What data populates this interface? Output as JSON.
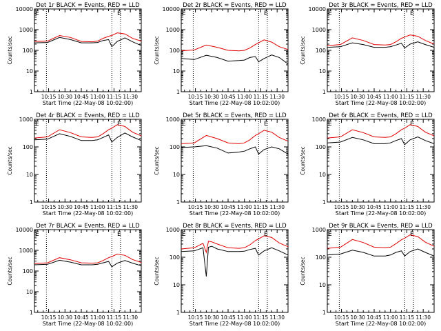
{
  "figure": {
    "panel_title_suffix": " BLACK = Events, RED = LLD",
    "xlabel": "Start Time (22-May-08 10:02:00)",
    "ylabel": "Counts/sec"
  },
  "colors": {
    "events": "#000000",
    "lld": "#e00000",
    "axes": "#000000",
    "background": "#ffffff"
  },
  "chart_data": [
    {
      "type": "line",
      "panel": "Det 1r",
      "title": "Det 1r BLACK = Events, RED = LLD",
      "xlabel": "Start Time (22-May-08 10:02:00)",
      "ylabel": "Counts/sec",
      "y_scale": "log",
      "ylim": [
        1,
        10000
      ],
      "xlim": [
        "10:02",
        "11:40"
      ],
      "x_ticks": [
        "10:15",
        "10:30",
        "10:45",
        "11:00",
        "11:15",
        "11:30"
      ],
      "y_ticks": [
        "1",
        "10",
        "100",
        "1000",
        "10000"
      ],
      "vertical_dotted_lines": [
        "10:13",
        "11:13",
        "11:21"
      ],
      "annotation": "E",
      "x": [
        "10:02",
        "10:14",
        "10:25",
        "10:35",
        "10:45",
        "10:55",
        "11:00",
        "11:05",
        "11:10",
        "11:13",
        "11:18",
        "11:25",
        "11:32",
        "11:40"
      ],
      "series": [
        {
          "name": "Events",
          "color": "#000000",
          "values": [
            230,
            240,
            420,
            330,
            230,
            230,
            240,
            300,
            330,
            150,
            270,
            400,
            260,
            170
          ]
        },
        {
          "name": "LLD",
          "color": "#e00000",
          "values": [
            270,
            280,
            520,
            420,
            270,
            260,
            280,
            380,
            480,
            520,
            700,
            620,
            380,
            280
          ]
        }
      ]
    },
    {
      "type": "line",
      "panel": "Det 2r",
      "title": "Det 2r BLACK = Events, RED = LLD",
      "xlabel": "Start Time (22-May-08 10:02:00)",
      "ylabel": "Counts/sec",
      "y_scale": "log",
      "ylim": [
        1,
        10000
      ],
      "xlim": [
        "10:02",
        "11:40"
      ],
      "x_ticks": [
        "10:15",
        "10:30",
        "10:45",
        "11:00",
        "11:15",
        "11:30"
      ],
      "y_ticks": [
        "1",
        "10",
        "100",
        "1000",
        "10000"
      ],
      "vertical_dotted_lines": [
        "10:13",
        "11:13",
        "11:21"
      ],
      "annotation": "E",
      "x": [
        "10:02",
        "10:14",
        "10:25",
        "10:35",
        "10:45",
        "10:55",
        "11:00",
        "11:05",
        "11:10",
        "11:13",
        "11:18",
        "11:25",
        "11:32",
        "11:40"
      ],
      "series": [
        {
          "name": "Events",
          "color": "#000000",
          "values": [
            40,
            36,
            58,
            45,
            30,
            32,
            34,
            45,
            50,
            28,
            40,
            60,
            45,
            22
          ]
        },
        {
          "name": "LLD",
          "color": "#e00000",
          "values": [
            95,
            105,
            180,
            140,
            100,
            95,
            100,
            130,
            190,
            230,
            320,
            250,
            150,
            110
          ]
        }
      ]
    },
    {
      "type": "line",
      "panel": "Det 3r",
      "title": "Det 3r BLACK = Events, RED = LLD",
      "xlabel": "Start Time (22-May-08 10:02:00)",
      "ylabel": "Counts/sec",
      "y_scale": "log",
      "ylim": [
        1,
        10000
      ],
      "xlim": [
        "10:02",
        "11:40"
      ],
      "x_ticks": [
        "10:15",
        "10:30",
        "10:45",
        "11:00",
        "11:15",
        "11:30"
      ],
      "y_ticks": [
        "1",
        "10",
        "100",
        "1000",
        "10000"
      ],
      "vertical_dotted_lines": [
        "10:13",
        "11:13",
        "11:21"
      ],
      "annotation": "E",
      "x": [
        "10:02",
        "10:14",
        "10:25",
        "10:35",
        "10:45",
        "10:55",
        "11:00",
        "11:05",
        "11:10",
        "11:13",
        "11:18",
        "11:25",
        "11:32",
        "11:40"
      ],
      "series": [
        {
          "name": "Events",
          "color": "#000000",
          "values": [
            140,
            150,
            230,
            190,
            140,
            140,
            150,
            180,
            220,
            130,
            200,
            260,
            190,
            140
          ]
        },
        {
          "name": "LLD",
          "color": "#e00000",
          "values": [
            170,
            190,
            400,
            300,
            190,
            180,
            190,
            260,
            380,
            440,
            560,
            480,
            300,
            200
          ]
        }
      ]
    },
    {
      "type": "line",
      "panel": "Det 4r",
      "title": "Det 4r BLACK = Events, RED = LLD",
      "xlabel": "Start Time (22-May-08 10:02:00)",
      "ylabel": "Counts/sec",
      "y_scale": "log",
      "ylim": [
        1,
        1000
      ],
      "xlim": [
        "10:02",
        "11:40"
      ],
      "x_ticks": [
        "10:15",
        "10:30",
        "10:45",
        "11:00",
        "11:15",
        "11:30"
      ],
      "y_ticks": [
        "1",
        "10",
        "100",
        "1000"
      ],
      "vertical_dotted_lines": [
        "10:13",
        "11:13",
        "11:21"
      ],
      "annotation": "E",
      "x": [
        "10:02",
        "10:14",
        "10:25",
        "10:35",
        "10:45",
        "10:55",
        "11:00",
        "11:05",
        "11:10",
        "11:13",
        "11:18",
        "11:25",
        "11:32",
        "11:40"
      ],
      "series": [
        {
          "name": "Events",
          "color": "#000000",
          "values": [
            180,
            190,
            300,
            240,
            170,
            170,
            180,
            220,
            270,
            150,
            220,
            320,
            230,
            170
          ]
        },
        {
          "name": "LLD",
          "color": "#e00000",
          "values": [
            210,
            230,
            420,
            330,
            230,
            220,
            230,
            300,
            420,
            480,
            640,
            550,
            340,
            250
          ]
        }
      ]
    },
    {
      "type": "line",
      "panel": "Det 5r",
      "title": "Det 5r BLACK = Events, RED = LLD",
      "xlabel": "Start Time (22-May-08 10:02:00)",
      "ylabel": "Counts/sec",
      "y_scale": "log",
      "ylim": [
        1,
        1000
      ],
      "xlim": [
        "10:02",
        "11:40"
      ],
      "x_ticks": [
        "10:15",
        "10:30",
        "10:45",
        "11:00",
        "11:15",
        "11:30"
      ],
      "y_ticks": [
        "1",
        "10",
        "100",
        "1000"
      ],
      "vertical_dotted_lines": [
        "10:13",
        "11:13",
        "11:21"
      ],
      "annotation": "E",
      "x": [
        "10:02",
        "10:14",
        "10:25",
        "10:35",
        "10:45",
        "10:55",
        "11:00",
        "11:05",
        "11:10",
        "11:13",
        "11:18",
        "11:25",
        "11:32",
        "11:40"
      ],
      "series": [
        {
          "name": "Events",
          "color": "#000000",
          "values": [
            95,
            100,
            110,
            90,
            60,
            65,
            70,
            85,
            100,
            55,
            80,
            100,
            85,
            55
          ]
        },
        {
          "name": "LLD",
          "color": "#e00000",
          "values": [
            130,
            140,
            260,
            200,
            140,
            130,
            140,
            180,
            260,
            300,
            400,
            340,
            220,
            160
          ]
        }
      ]
    },
    {
      "type": "line",
      "panel": "Det 6r",
      "title": "Det 6r BLACK = Events, RED = LLD",
      "xlabel": "Start Time (22-May-08 10:02:00)",
      "ylabel": "Counts/sec",
      "y_scale": "log",
      "ylim": [
        1,
        1000
      ],
      "xlim": [
        "10:02",
        "11:40"
      ],
      "x_ticks": [
        "10:15",
        "10:30",
        "10:45",
        "11:00",
        "11:15",
        "11:30"
      ],
      "y_ticks": [
        "1",
        "10",
        "100",
        "1000"
      ],
      "vertical_dotted_lines": [
        "10:13",
        "11:13",
        "11:21"
      ],
      "annotation": "E",
      "x": [
        "10:02",
        "10:14",
        "10:25",
        "10:35",
        "10:45",
        "10:55",
        "11:00",
        "11:05",
        "11:10",
        "11:13",
        "11:18",
        "11:25",
        "11:32",
        "11:40"
      ],
      "series": [
        {
          "name": "Events",
          "color": "#000000",
          "values": [
            140,
            150,
            220,
            180,
            130,
            130,
            140,
            170,
            200,
            120,
            180,
            230,
            170,
            130
          ]
        },
        {
          "name": "LLD",
          "color": "#e00000",
          "values": [
            210,
            230,
            420,
            330,
            230,
            220,
            230,
            300,
            420,
            480,
            640,
            550,
            340,
            250
          ]
        }
      ]
    },
    {
      "type": "line",
      "panel": "Det 7r",
      "title": "Det 7r BLACK = Events, RED = LLD",
      "xlabel": "Start Time (22-May-08 10:02:00)",
      "ylabel": "Counts/sec",
      "y_scale": "log",
      "ylim": [
        1,
        10000
      ],
      "xlim": [
        "10:02",
        "11:40"
      ],
      "x_ticks": [
        "10:15",
        "10:30",
        "10:45",
        "11:00",
        "11:15",
        "11:30"
      ],
      "y_ticks": [
        "1",
        "10",
        "100",
        "1000",
        "10000"
      ],
      "vertical_dotted_lines": [
        "10:13",
        "11:13",
        "11:21"
      ],
      "annotation": "E",
      "x": [
        "10:02",
        "10:14",
        "10:25",
        "10:35",
        "10:45",
        "10:55",
        "11:00",
        "11:05",
        "11:10",
        "11:13",
        "11:18",
        "11:25",
        "11:32",
        "11:40"
      ],
      "series": [
        {
          "name": "Events",
          "color": "#000000",
          "values": [
            200,
            210,
            330,
            270,
            200,
            200,
            210,
            250,
            290,
            160,
            240,
            320,
            240,
            180
          ]
        },
        {
          "name": "LLD",
          "color": "#e00000",
          "values": [
            230,
            250,
            440,
            350,
            250,
            240,
            250,
            320,
            440,
            500,
            660,
            570,
            360,
            260
          ]
        }
      ]
    },
    {
      "type": "line",
      "panel": "Det 8r",
      "title": "Det 8r BLACK = Events, RED = LLD",
      "xlabel": "Start Time (22-May-08 10:02:00)",
      "ylabel": "Counts/sec",
      "y_scale": "log",
      "ylim": [
        1,
        1000
      ],
      "xlim": [
        "10:02",
        "11:40"
      ],
      "x_ticks": [
        "10:15",
        "10:30",
        "10:45",
        "11:00",
        "11:15",
        "11:30"
      ],
      "y_ticks": [
        "1",
        "10",
        "100",
        "1000"
      ],
      "vertical_dotted_lines": [
        "10:13",
        "11:13",
        "11:21"
      ],
      "annotation": "E",
      "x": [
        "10:02",
        "10:14",
        "10:22",
        "10:25",
        "10:27",
        "10:30",
        "10:35",
        "10:45",
        "10:55",
        "11:00",
        "11:05",
        "11:10",
        "11:13",
        "11:18",
        "11:25",
        "11:32",
        "11:40"
      ],
      "series": [
        {
          "name": "Events",
          "color": "#000000",
          "values": [
            160,
            170,
            220,
            20,
            230,
            250,
            200,
            160,
            160,
            165,
            190,
            210,
            120,
            170,
            220,
            170,
            120
          ]
        },
        {
          "name": "LLD",
          "color": "#e00000",
          "values": [
            200,
            220,
            320,
            150,
            380,
            360,
            300,
            220,
            210,
            220,
            280,
            400,
            460,
            600,
            520,
            330,
            240
          ]
        }
      ]
    },
    {
      "type": "line",
      "panel": "Det 9r",
      "title": "Det 9r BLACK = Events, RED = LLD",
      "xlabel": "Start Time (22-May-08 10:02:00)",
      "ylabel": "Counts/sec",
      "y_scale": "log",
      "ylim": [
        1,
        1000
      ],
      "xlim": [
        "10:02",
        "11:40"
      ],
      "x_ticks": [
        "10:15",
        "10:30",
        "10:45",
        "11:00",
        "11:15",
        "11:30"
      ],
      "y_ticks": [
        "1",
        "10",
        "100",
        "1000"
      ],
      "vertical_dotted_lines": [
        "10:13",
        "11:13",
        "11:21"
      ],
      "annotation": "E",
      "x": [
        "10:02",
        "10:14",
        "10:25",
        "10:35",
        "10:45",
        "10:55",
        "11:00",
        "11:05",
        "11:10",
        "11:13",
        "11:18",
        "11:25",
        "11:32",
        "11:40"
      ],
      "series": [
        {
          "name": "Events",
          "color": "#000000",
          "values": [
            120,
            130,
            180,
            150,
            110,
            110,
            120,
            150,
            170,
            110,
            160,
            200,
            150,
            110
          ]
        },
        {
          "name": "LLD",
          "color": "#e00000",
          "values": [
            210,
            230,
            440,
            340,
            230,
            220,
            230,
            310,
            430,
            490,
            650,
            560,
            350,
            250
          ]
        }
      ]
    }
  ]
}
